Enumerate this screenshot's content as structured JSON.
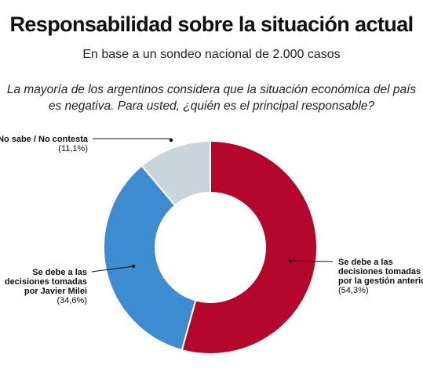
{
  "header": {
    "title": "Responsabilidad sobre la situación actual",
    "subtitle": "En base a un sondeo nacional de 2.000 casos",
    "question": "La mayoría de los argentinos considera que la situación económica del país es negativa. Para usted, ¿quién es el principal responsable?"
  },
  "chart_data": {
    "type": "pie",
    "variant": "donut",
    "title": "Responsabilidad sobre la situación actual",
    "subtitle": "En base a un sondeo nacional de 2.000 casos",
    "slices": [
      {
        "label_lines": [
          "Se debe a las",
          "decisiones tomadas",
          "por la gestión anterior"
        ],
        "value": 54.3,
        "value_label": "(54,3%)",
        "color": "#b5072b"
      },
      {
        "label_lines": [
          "Se debe a las",
          "decisiones tomadas",
          "por Javier Milei"
        ],
        "value": 34.6,
        "value_label": "(34,6%)",
        "color": "#3d8bd0"
      },
      {
        "label_lines": [
          "No sabe / No contesta"
        ],
        "value": 11.1,
        "value_label": "(11,1%)",
        "color": "#c9d4dc"
      }
    ]
  }
}
